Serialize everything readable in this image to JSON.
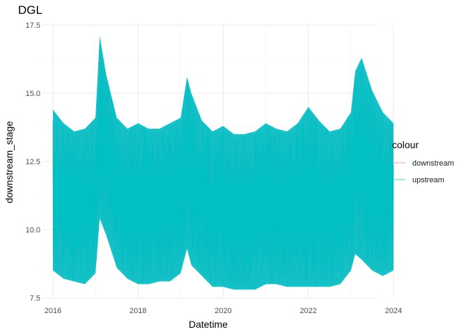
{
  "chart_data": {
    "type": "line",
    "title": "DGL",
    "xlabel": "Datetime",
    "ylabel": "downstream_stage",
    "xlim": [
      2016.0,
      2024.0
    ],
    "ylim": [
      7.5,
      17.5
    ],
    "x_ticks": [
      "2016",
      "2018",
      "2020",
      "2022",
      "2024"
    ],
    "x_tick_values": [
      2016,
      2018,
      2020,
      2022,
      2024
    ],
    "y_ticks": [
      "7.5",
      "10.0",
      "12.5",
      "15.0",
      "17.5"
    ],
    "y_tick_values": [
      7.5,
      10.0,
      12.5,
      15.0,
      17.5
    ],
    "grid": true,
    "legend": {
      "title": "colour",
      "position": "right",
      "entries": [
        "downstream",
        "upstream"
      ]
    },
    "series": [
      {
        "name": "downstream",
        "color": "#F8766D",
        "x": [
          2016.0,
          2016.25,
          2016.5,
          2016.75,
          2017.0,
          2017.1,
          2017.25,
          2017.5,
          2017.75,
          2018.0,
          2018.25,
          2018.5,
          2018.75,
          2019.0,
          2019.15,
          2019.25,
          2019.5,
          2019.75,
          2020.0,
          2020.25,
          2020.5,
          2020.75,
          2021.0,
          2021.25,
          2021.5,
          2021.75,
          2022.0,
          2022.25,
          2022.5,
          2022.75,
          2023.0,
          2023.1,
          2023.25,
          2023.5,
          2023.75,
          2024.0
        ],
        "high": [
          14.3,
          13.8,
          13.5,
          13.6,
          14.0,
          17.0,
          15.6,
          14.0,
          13.6,
          13.8,
          13.6,
          13.6,
          13.8,
          14.0,
          15.5,
          14.9,
          13.9,
          13.5,
          13.7,
          13.4,
          13.4,
          13.5,
          13.8,
          13.6,
          13.5,
          13.8,
          14.4,
          13.9,
          13.5,
          13.6,
          14.2,
          15.7,
          16.2,
          15.0,
          14.2,
          13.8
        ],
        "low": [
          8.6,
          8.3,
          8.2,
          8.1,
          8.5,
          10.5,
          9.9,
          8.7,
          8.3,
          8.1,
          8.1,
          8.2,
          8.2,
          8.5,
          9.4,
          8.8,
          8.4,
          8.0,
          8.0,
          7.9,
          7.9,
          7.9,
          8.1,
          8.1,
          8.0,
          8.0,
          8.0,
          8.0,
          8.0,
          8.1,
          8.6,
          9.2,
          9.0,
          8.6,
          8.4,
          8.6
        ]
      },
      {
        "name": "upstream",
        "color": "#00BFC4",
        "x": [
          2016.0,
          2016.25,
          2016.5,
          2016.75,
          2017.0,
          2017.1,
          2017.25,
          2017.5,
          2017.75,
          2018.0,
          2018.25,
          2018.5,
          2018.75,
          2019.0,
          2019.15,
          2019.25,
          2019.5,
          2019.75,
          2020.0,
          2020.25,
          2020.5,
          2020.75,
          2021.0,
          2021.25,
          2021.5,
          2021.75,
          2022.0,
          2022.25,
          2022.5,
          2022.75,
          2023.0,
          2023.1,
          2023.25,
          2023.5,
          2023.75,
          2024.0
        ],
        "high": [
          14.4,
          13.9,
          13.6,
          13.7,
          14.1,
          17.1,
          15.7,
          14.1,
          13.7,
          13.9,
          13.7,
          13.7,
          13.9,
          14.1,
          15.6,
          15.0,
          14.0,
          13.6,
          13.8,
          13.5,
          13.5,
          13.6,
          13.9,
          13.7,
          13.6,
          13.9,
          14.5,
          14.0,
          13.6,
          13.7,
          14.3,
          15.8,
          16.3,
          15.1,
          14.3,
          13.9
        ],
        "low": [
          8.5,
          8.2,
          8.1,
          8.0,
          8.4,
          10.4,
          9.8,
          8.6,
          8.2,
          8.0,
          8.0,
          8.1,
          8.1,
          8.4,
          9.3,
          8.7,
          8.3,
          7.9,
          7.9,
          7.8,
          7.8,
          7.8,
          8.0,
          8.0,
          7.9,
          7.9,
          7.9,
          7.9,
          7.9,
          8.0,
          8.5,
          9.1,
          8.9,
          8.5,
          8.3,
          8.5
        ]
      }
    ]
  }
}
